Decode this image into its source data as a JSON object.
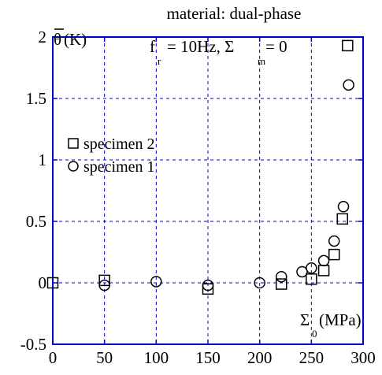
{
  "chart_data": {
    "type": "scatter",
    "title_line1": "material: dual-phase",
    "title_line2": {
      "f_base": "f",
      "f_sub": "r",
      "f_rest": " = 10Hz, Σ",
      "sigma_sub": "m",
      "sigma_rest": " = 0"
    },
    "ylabel": {
      "bar": "θ",
      "rest": "(K)"
    },
    "xlabel": {
      "base": "Σ",
      "sub": "0",
      "rest": "(MPa)"
    },
    "xlim": [
      0,
      300
    ],
    "ylim": [
      -0.5,
      2
    ],
    "x_ticks": [
      "0",
      "50",
      "100",
      "150",
      "200",
      "250",
      "300"
    ],
    "y_ticks": [
      "-0.5",
      "0",
      "0.5",
      "1",
      "1.5",
      "2"
    ],
    "grid": true,
    "axis_color": "#0000cc",
    "grid_color": "#0000cc",
    "legend_position": "left-middle",
    "series": [
      {
        "name": "specimen 2",
        "marker": "square",
        "points": [
          [
            0,
            0
          ],
          [
            50,
            0.02
          ],
          [
            150,
            -0.05
          ],
          [
            221,
            -0.01
          ],
          [
            250,
            0.03
          ],
          [
            262,
            0.1
          ],
          [
            272,
            0.23
          ],
          [
            280,
            0.52
          ],
          [
            285,
            1.93
          ]
        ]
      },
      {
        "name": "specimen 1",
        "marker": "circle",
        "points": [
          [
            50,
            -0.02
          ],
          [
            100,
            0.01
          ],
          [
            150,
            -0.02
          ],
          [
            200,
            0.0
          ],
          [
            221,
            0.05
          ],
          [
            241,
            0.09
          ],
          [
            250,
            0.12
          ],
          [
            262,
            0.18
          ],
          [
            272,
            0.34
          ],
          [
            281,
            0.62
          ],
          [
            286,
            1.61
          ]
        ]
      }
    ]
  }
}
